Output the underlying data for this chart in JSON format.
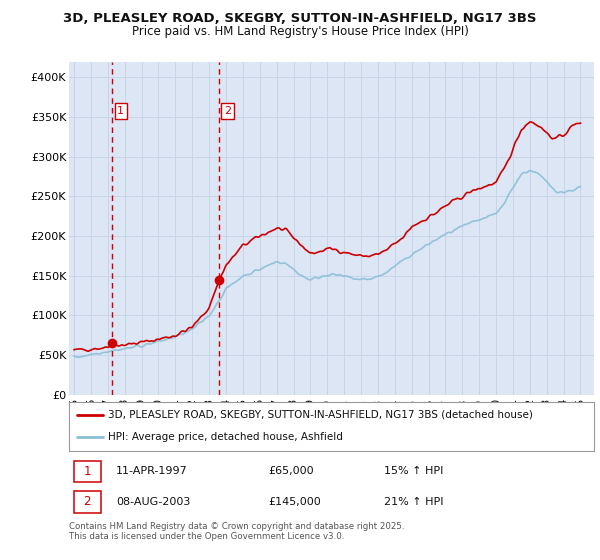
{
  "title": "3D, PLEASLEY ROAD, SKEGBY, SUTTON-IN-ASHFIELD, NG17 3BS",
  "subtitle": "Price paid vs. HM Land Registry's House Price Index (HPI)",
  "ylabel_ticks": [
    "£0",
    "£50K",
    "£100K",
    "£150K",
    "£200K",
    "£250K",
    "£300K",
    "£350K",
    "£400K"
  ],
  "ytick_values": [
    0,
    50000,
    100000,
    150000,
    200000,
    250000,
    300000,
    350000,
    400000
  ],
  "ylim": [
    0,
    420000
  ],
  "xlim_start": 1994.7,
  "xlim_end": 2025.8,
  "xtick_years": [
    1995,
    1996,
    1997,
    1998,
    1999,
    2000,
    2001,
    2002,
    2003,
    2004,
    2005,
    2006,
    2007,
    2008,
    2009,
    2010,
    2011,
    2012,
    2013,
    2014,
    2015,
    2016,
    2017,
    2018,
    2019,
    2020,
    2021,
    2022,
    2023,
    2024,
    2025
  ],
  "red_line_color": "#cc0000",
  "blue_line_color": "#8bbfd6",
  "dot_color": "#cc0000",
  "vline_color": "#cc0000",
  "grid_color": "#c8d4e8",
  "bg_color": "#dce6f5",
  "legend_label_red": "3D, PLEASLEY ROAD, SKEGBY, SUTTON-IN-ASHFIELD, NG17 3BS (detached house)",
  "legend_label_blue": "HPI: Average price, detached house, Ashfield",
  "purchase1_date": 1997.27,
  "purchase1_price": 65000,
  "purchase2_date": 2003.59,
  "purchase2_price": 145000,
  "footer": "Contains HM Land Registry data © Crown copyright and database right 2025.\nThis data is licensed under the Open Government Licence v3.0."
}
